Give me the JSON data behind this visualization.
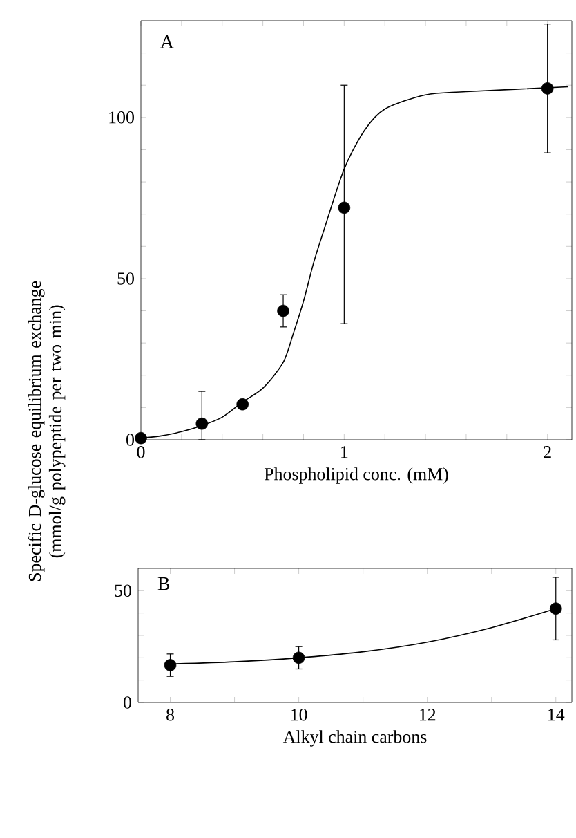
{
  "chart_data": [
    {
      "type": "scatter",
      "ylabel": "Specific D-glucose equilibrium exchange (mmol/g polypeptide per two min)",
      "xlabel": "Phospholipid conc. (mM)",
      "annotations": [
        "A"
      ],
      "xlim": [
        0,
        2.12
      ],
      "ylim": [
        0,
        130
      ],
      "xticks": [
        0,
        {
          "value": 0.2,
          "label": null
        },
        {
          "value": 0.4,
          "label": null
        },
        {
          "value": 0.6,
          "label": null
        },
        {
          "value": 0.8,
          "label": null
        },
        1,
        {
          "value": 1.2,
          "label": null
        },
        {
          "value": 1.4,
          "label": null
        },
        {
          "value": 1.6,
          "label": null
        },
        {
          "value": 1.8,
          "label": null
        },
        2
      ],
      "yticks": [
        0,
        {
          "value": 10,
          "label": null
        },
        {
          "value": 20,
          "label": null
        },
        {
          "value": 30,
          "label": null
        },
        {
          "value": 40,
          "label": null
        },
        50,
        {
          "value": 60,
          "label": null
        },
        {
          "value": 70,
          "label": null
        },
        {
          "value": 80,
          "label": null
        },
        {
          "value": 90,
          "label": null
        },
        100,
        {
          "value": 110,
          "label": null
        },
        {
          "value": 120,
          "label": null
        }
      ],
      "grid": false,
      "series": [
        {
          "type": "scatter",
          "marker": "circle",
          "color": "#000000",
          "x": [
            0,
            0.3,
            0.5,
            0.7,
            1.0,
            2.0
          ],
          "values": [
            0.5,
            5,
            11,
            40,
            72,
            109
          ],
          "errors": [
            null,
            [
              0,
              15
            ],
            null,
            5,
            [
              36,
              110
            ],
            [
              89,
              129
            ]
          ]
        },
        {
          "type": "line",
          "marker": "none",
          "color": "#000000",
          "x": [
            0,
            0.1,
            0.2,
            0.3,
            0.4,
            0.5,
            0.6,
            0.7,
            0.75,
            0.8,
            0.85,
            0.9,
            1.0,
            1.1,
            1.2,
            1.4,
            1.6,
            2.1
          ],
          "values": [
            0.5,
            1.2,
            2.5,
            4.4,
            7,
            11.7,
            16,
            24,
            33,
            43,
            55,
            65,
            84,
            96,
            102.6,
            107,
            108,
            109.5
          ]
        }
      ]
    },
    {
      "type": "scatter",
      "xlabel": "Alkyl chain carbons",
      "annotations": [
        "B"
      ],
      "xlim": [
        7.5,
        14.25
      ],
      "ylim": [
        0,
        60
      ],
      "xticks": [
        8,
        {
          "value": 9,
          "label": null
        },
        10,
        {
          "value": 11,
          "label": null
        },
        12,
        {
          "value": 13,
          "label": null
        },
        14
      ],
      "yticks": [
        0,
        {
          "value": 10,
          "label": null
        },
        {
          "value": 20,
          "label": null
        },
        {
          "value": 30,
          "label": null
        },
        {
          "value": 40,
          "label": null
        },
        50
      ],
      "grid": false,
      "series": [
        {
          "type": "scatter",
          "marker": "circle",
          "color": "#000000",
          "x": [
            8,
            10,
            14
          ],
          "values": [
            16.7,
            20,
            42
          ],
          "errors": [
            5,
            5,
            [
              28,
              56
            ]
          ]
        },
        {
          "type": "line",
          "marker": "none",
          "color": "#000000",
          "x": [
            8,
            9,
            10,
            11,
            12,
            13,
            14
          ],
          "values": [
            17.2,
            18.2,
            20,
            22.7,
            27,
            33.5,
            42
          ]
        }
      ]
    }
  ]
}
